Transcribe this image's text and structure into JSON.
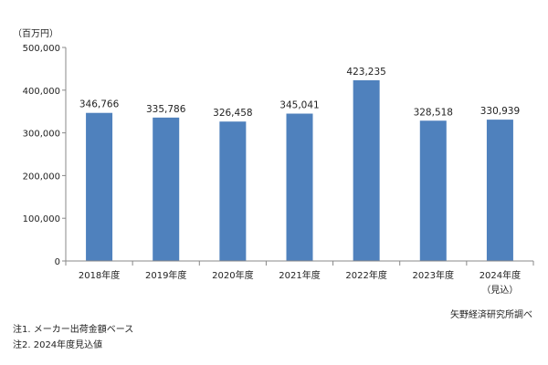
{
  "chart_data": {
    "type": "bar",
    "title": "",
    "xlabel": "",
    "ylabel": "",
    "unit": "（百万円）",
    "categories": [
      "2018年度",
      "2019年度",
      "2020年度",
      "2021年度",
      "2022年度",
      "2023年度",
      "2024年度"
    ],
    "category_sublabels": [
      "",
      "",
      "",
      "",
      "",
      "",
      "（見込）"
    ],
    "values": [
      346766,
      335786,
      326458,
      345041,
      423235,
      328518,
      330939
    ],
    "value_labels": [
      "346,766",
      "335,786",
      "326,458",
      "345,041",
      "423,235",
      "328,518",
      "330,939"
    ],
    "ylim": [
      0,
      500000
    ],
    "yticks": [
      0,
      100000,
      200000,
      300000,
      400000,
      500000
    ],
    "ytick_labels": [
      "0",
      "100,000",
      "200,000",
      "300,000",
      "400,000",
      "500,000"
    ],
    "bar_color": "#4f81bd",
    "grid": false,
    "legend": "none"
  },
  "notes": [
    "注1. メーカー出荷金額ベース",
    "注2. 2024年度見込値"
  ],
  "source": "矢野経済研究所調べ"
}
